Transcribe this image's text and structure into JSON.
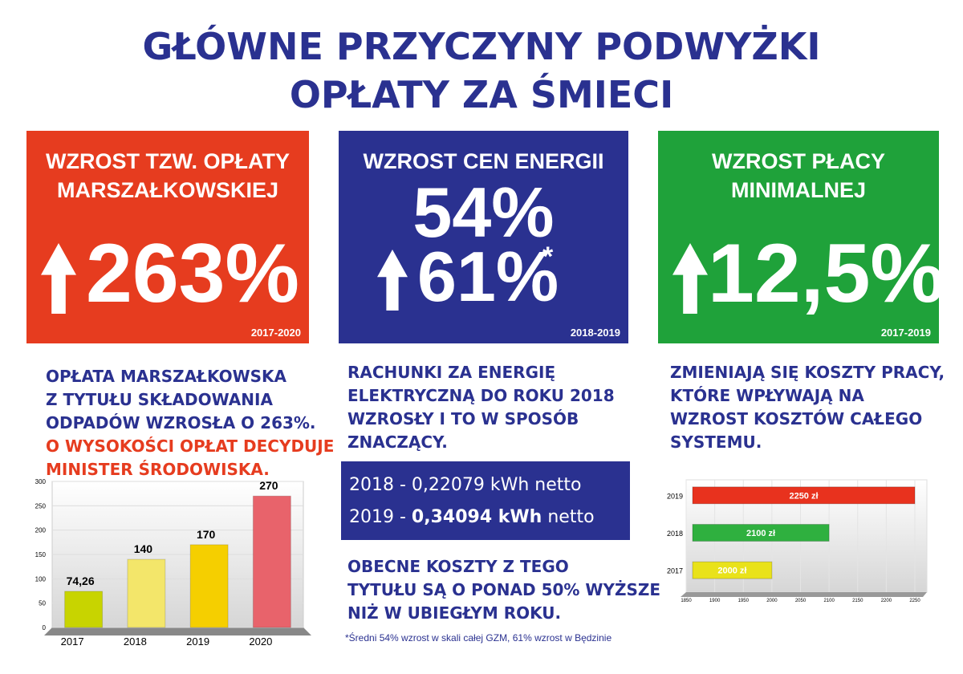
{
  "header": {
    "title_lines": [
      "GŁÓWNE PRZYCZYNY PODWYŻKI",
      "OPŁATY ZA ŚMIECI"
    ]
  },
  "panels": [
    {
      "title_lines": [
        "WZROST TZW. OPŁATY",
        "MARSZAŁKOWSKIEJ"
      ],
      "values": [
        "263%"
      ],
      "period": "2017-2020",
      "color": "#e63c1f"
    },
    {
      "title_lines": [
        "WZROST CEN ENERGII"
      ],
      "values": [
        "54%",
        "61%"
      ],
      "footnote_mark": "*",
      "period": "2018-2019",
      "color": "#2a3190"
    },
    {
      "title_lines": [
        "WZROST PŁACY",
        "MINIMALNEJ"
      ],
      "values": [
        "12,5%"
      ],
      "period": "2017-2019",
      "color": "#1fa23a"
    }
  ],
  "columns": [
    {
      "lines": [
        "OPŁATA MARSZAŁKOWSKA",
        "Z TYTUŁU SKŁADOWANIA",
        "ODPADÓW WZROSŁA O 263%."
      ],
      "highlight_lines": [
        "O WYSOKOŚCI OPŁAT DECYDUJE",
        "MINISTER ŚRODOWISKA."
      ]
    },
    {
      "lines": [
        "RACHUNKI ZA ENERGIĘ",
        "ELEKTRYCZNĄ DO ROKU 2018",
        "WZROSŁY I TO W SPOSÓB",
        "ZNACZĄCY."
      ],
      "price_box": [
        [
          "2018 - 0,22079 kWh netto"
        ],
        [
          "2019 - ",
          "0,34094 kWh",
          " netto"
        ]
      ],
      "outro_lines": [
        "OBECNE KOSZTY Z TEGO",
        "TYTUŁU SĄ O PONAD 50% WYŻSZE",
        "NIŻ W UBIEGŁYM ROKU."
      ],
      "footnote": "*Średni 54% wzrost w skali całej GZM, 61% wzrost w Będzinie"
    },
    {
      "lines": [
        "ZMIENIAJĄ SIĘ KOSZTY PRACY,",
        "KTÓRE WPŁYWAJĄ NA",
        "WZROST KOSZTÓW CAŁEGO",
        "SYSTEMU."
      ]
    }
  ],
  "chart_data": [
    {
      "type": "bar",
      "categories": [
        "2017",
        "2018",
        "2019",
        "2020"
      ],
      "values": [
        74.26,
        140,
        170,
        270
      ],
      "value_labels": [
        "74,26",
        "140",
        "170",
        "270"
      ],
      "colors": [
        "#c8d400",
        "#f3e66a",
        "#f5cf00",
        "#e8636b"
      ],
      "ylim": [
        0,
        300
      ],
      "yticks": [
        0,
        50,
        100,
        150,
        200,
        250,
        300
      ],
      "grid": true
    },
    {
      "type": "barh",
      "categories": [
        "2019",
        "2018",
        "2017"
      ],
      "values": [
        2250,
        2100,
        2000
      ],
      "value_labels": [
        "2250 zł",
        "2100 zł",
        "2000 zł"
      ],
      "colors": [
        "#e8321e",
        "#2fb03f",
        "#e9e21a"
      ],
      "xlim": [
        1850,
        2250
      ],
      "xticks": [
        1850,
        1900,
        1950,
        2000,
        2050,
        2100,
        2150,
        2200,
        2250
      ],
      "grid": true
    }
  ]
}
